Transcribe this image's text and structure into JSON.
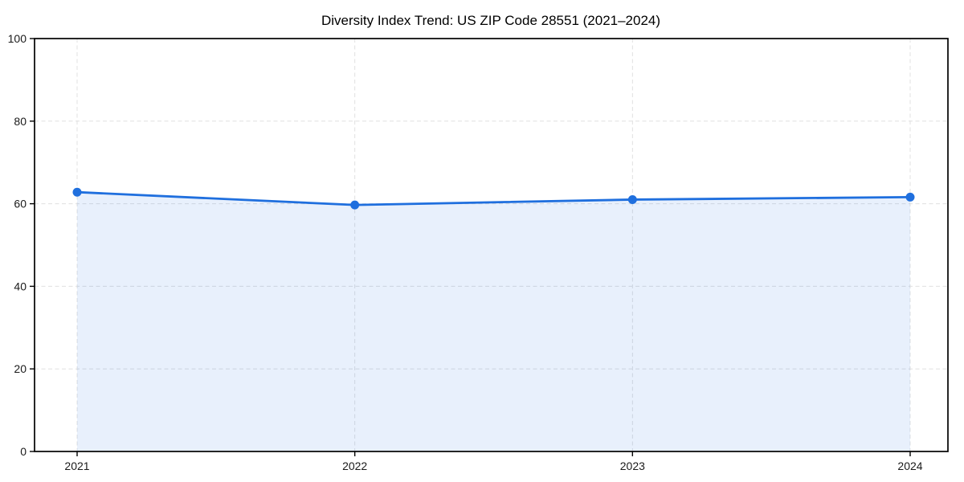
{
  "page": {
    "background": "#ffffff"
  },
  "chart_data": {
    "type": "line",
    "title": "Diversity Index Trend: US ZIP Code 28551 (2021–2024)",
    "categories": [
      "2021",
      "2022",
      "2023",
      "2024"
    ],
    "series": [
      {
        "name": "Diversity Index",
        "values": [
          62.8,
          59.7,
          61.0,
          61.6
        ]
      }
    ],
    "xlabel": "",
    "ylabel": "",
    "ylim": [
      0,
      100
    ],
    "yticks": [
      0,
      20,
      40,
      60,
      80,
      100
    ],
    "grid": "both-dashed",
    "legend_position": "none",
    "area_fill": true,
    "marker": "circle",
    "colors": {
      "line": "#1f6fde",
      "marker": "#1f6fde",
      "fill": "#1f6fde",
      "fill_opacity": 0.1,
      "grid": "#e0e0e0",
      "axis_box": "#000000",
      "tick": "#000000",
      "text": "#1a1a1a",
      "title": "#000000",
      "background": "#ffffff"
    }
  }
}
